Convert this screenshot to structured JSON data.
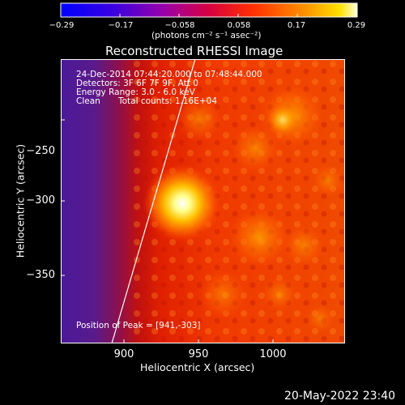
{
  "title": "Reconstructed RHESSI Image",
  "colorbar": {
    "ticks": [
      "−0.29",
      "−0.17",
      "−0.058",
      "0.058",
      "0.17",
      "0.29"
    ],
    "units_label": "(photons cm⁻² s⁻¹ asec⁻²)"
  },
  "info": {
    "time_range": "24-Dec-2014 07:44:20.000 to 07:48:44.000",
    "detectors": "Detectors: 3F 6F 7F 9F, Att 0",
    "energy": "Energy Range: 3.0 - 6.0 keV",
    "clean_label": "Clean",
    "total_counts": "Total counts: 1.16E+04",
    "peak": "Position of Peak = [941,-303]"
  },
  "axes": {
    "x_label": "Heliocentric X (arcsec)",
    "y_label": "Heliocentric Y (arcsec)",
    "x_ticks": [
      "900",
      "950",
      "1000"
    ],
    "y_ticks": [
      "−250",
      "−300",
      "−350"
    ]
  },
  "footer_timestamp": "20-May-2022 23:40",
  "colors": {
    "background": "#000000",
    "limb_line": "#ffffff",
    "colormap": [
      "#0000ff",
      "#5a00c8",
      "#a000a0",
      "#e00020",
      "#ff6000",
      "#ffd000",
      "#ffffe0"
    ]
  }
}
